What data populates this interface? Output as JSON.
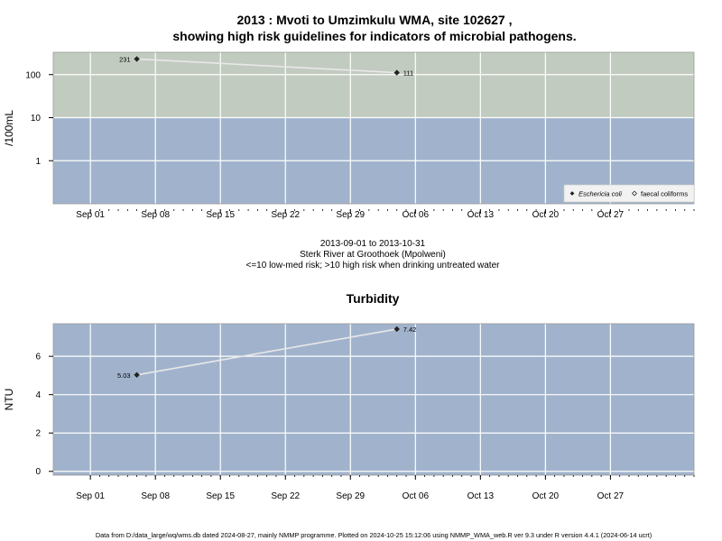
{
  "title_line1": "2013 : Mvoti to Umzimkulu WMA, site 102627 ,",
  "title_line2": "showing high risk guidelines for indicators of microbial pathogens.",
  "subtitle": {
    "date_range": "2013-09-01 to 2013-10-31",
    "site_name": "Sterk River at Groothoek (Mpolweni)",
    "risk_note": "<=10 low-med risk; >10 high risk when drinking untreated water"
  },
  "footer": "Data from D:/data_large/wq/wms.db dated 2024-08-27, mainly NMMP programme. Plotted on 2024-10-25 15:12:06 using NMMP_WMA_web.R ver 9.3 under R version 4.4.1 (2024-06-14 ucrt)",
  "colors": {
    "panel_blue": "#a1b3cc",
    "high_risk_band": "#c2cbc0",
    "grid": "#ffffff",
    "line": "#e8e8e8",
    "marker": "#222222"
  },
  "chart_data": [
    {
      "type": "line",
      "title": "",
      "ylabel": "/100mL",
      "yscale": "log",
      "xlim": [
        "2013-08-28",
        "2013-11-05"
      ],
      "ylim": [
        0.1,
        330
      ],
      "x_ticks": [
        "2013-09-01",
        "2013-09-08",
        "2013-09-15",
        "2013-09-22",
        "2013-09-29",
        "2013-10-06",
        "2013-10-13",
        "2013-10-20",
        "2013-10-27"
      ],
      "x_tick_labels": [
        "Sep 01",
        "Sep 08",
        "Sep 15",
        "Sep 22",
        "Sep 29",
        "Oct 06",
        "Oct 13",
        "Oct 20",
        "Oct 27"
      ],
      "y_ticks": [
        1,
        10,
        100
      ],
      "y_tick_labels": [
        "1",
        "10",
        "100"
      ],
      "high_risk_threshold": 10,
      "grid": true,
      "legend_position": "bottom-right",
      "legend": [
        "Eschericia coli",
        "faecal coliforms"
      ],
      "series": [
        {
          "name": "Eschericia coli",
          "marker": "filled-diamond",
          "x": [
            "2013-09-06",
            "2013-10-04"
          ],
          "y": [
            231,
            111
          ],
          "labels": [
            "231",
            "111"
          ]
        }
      ]
    },
    {
      "type": "line",
      "title": "Turbidity",
      "ylabel": "NTU",
      "yscale": "linear",
      "xlim": [
        "2013-08-28",
        "2013-11-05"
      ],
      "ylim": [
        -0.2,
        7.7
      ],
      "x_ticks": [
        "2013-09-01",
        "2013-09-08",
        "2013-09-15",
        "2013-09-22",
        "2013-09-29",
        "2013-10-06",
        "2013-10-13",
        "2013-10-20",
        "2013-10-27"
      ],
      "x_tick_labels": [
        "Sep 01",
        "Sep 08",
        "Sep 15",
        "Sep 22",
        "Sep 29",
        "Oct 06",
        "Oct 13",
        "Oct 20",
        "Oct 27"
      ],
      "y_ticks": [
        0,
        2,
        4,
        6
      ],
      "y_tick_labels": [
        "0",
        "2",
        "4",
        "6"
      ],
      "grid": true,
      "series": [
        {
          "marker": "filled-diamond",
          "x": [
            "2013-09-06",
            "2013-10-04"
          ],
          "y": [
            5.03,
            7.42
          ],
          "labels": [
            "5.03",
            "7.42"
          ]
        }
      ]
    }
  ]
}
